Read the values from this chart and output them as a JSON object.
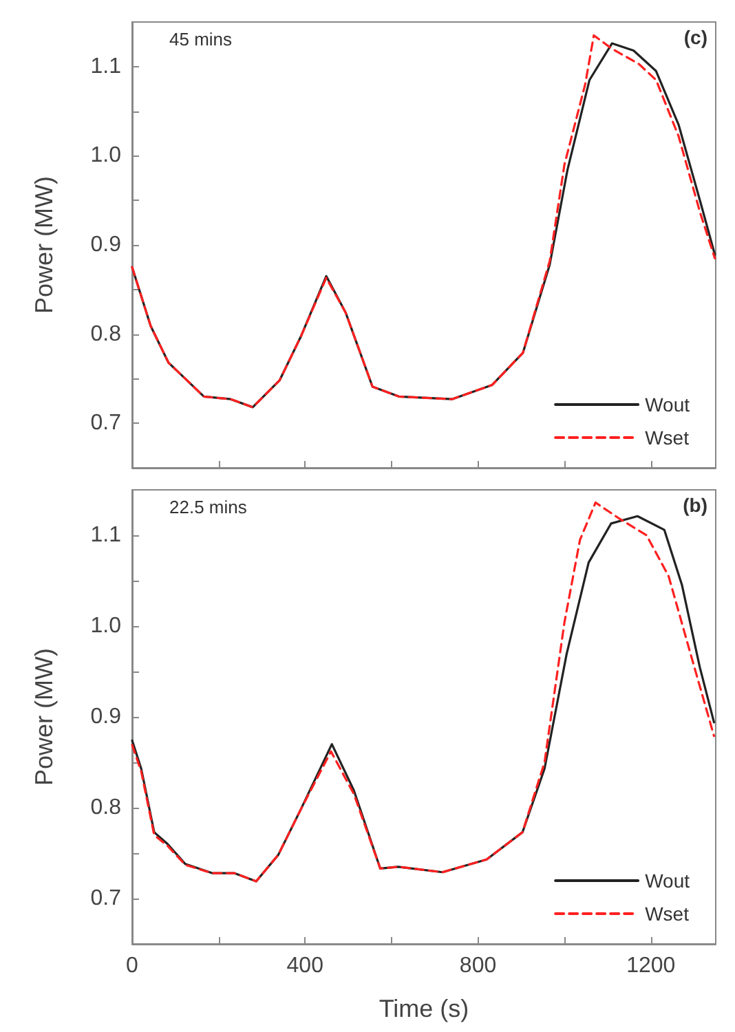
{
  "chart_data": [
    {
      "type": "line",
      "ylabel": "Power (MW)",
      "annotations": [
        "45 mins",
        "(c)"
      ],
      "xlim": [
        0,
        1350
      ],
      "ylim": [
        0.65,
        1.15
      ],
      "xticks": [
        0,
        {
          "value": 200,
          "label": null
        },
        400,
        {
          "value": 600,
          "label": null
        },
        800,
        {
          "value": 1000,
          "label": null
        },
        1200
      ],
      "yticks": [
        {
          "value": 0.65,
          "label": null
        },
        0.7,
        {
          "value": 0.75,
          "label": null
        },
        0.8,
        {
          "value": 0.85,
          "label": null
        },
        0.9,
        {
          "value": 0.95,
          "label": null
        },
        {
          "value": 1,
          "label": "1.0"
        },
        {
          "value": 1.05,
          "label": null
        },
        1.1
      ],
      "tick_labels": "y",
      "grid": false,
      "legend": "bottom right",
      "marker": "none",
      "series": [
        {
          "name": "Wout",
          "color": "#222222",
          "line_style": "solid",
          "x": [
            0,
            43,
            84,
            166,
            228,
            279,
            341,
            391,
            449,
            494,
            556,
            617,
            740,
            833,
            904,
            966,
            1007,
            1058,
            1110,
            1160,
            1212,
            1264,
            1314,
            1348
          ],
          "values": [
            0.875,
            0.809,
            0.768,
            0.73,
            0.727,
            0.718,
            0.748,
            0.798,
            0.865,
            0.824,
            0.741,
            0.73,
            0.727,
            0.743,
            0.779,
            0.878,
            0.984,
            1.085,
            1.126,
            1.118,
            1.095,
            1.035,
            0.949,
            0.889
          ]
        },
        {
          "name": "Wset",
          "color": "#ff2020",
          "line_style": "dashed",
          "x": [
            0,
            43,
            84,
            166,
            228,
            279,
            341,
            391,
            449,
            494,
            556,
            617,
            740,
            833,
            904,
            966,
            1000,
            1048,
            1068,
            1110,
            1172,
            1212,
            1264,
            1314,
            1348
          ],
          "values": [
            0.875,
            0.809,
            0.768,
            0.73,
            0.727,
            0.718,
            0.748,
            0.798,
            0.863,
            0.824,
            0.741,
            0.73,
            0.727,
            0.743,
            0.779,
            0.882,
            0.99,
            1.08,
            1.135,
            1.12,
            1.103,
            1.085,
            1.022,
            0.936,
            0.885
          ]
        }
      ]
    },
    {
      "type": "line",
      "xlabel": "Time (s)",
      "ylabel": "Power (MW)",
      "annotations": [
        "22.5 mins",
        "(b)"
      ],
      "xlim": [
        0,
        1350
      ],
      "ylim": [
        0.65,
        1.15
      ],
      "xticks": [
        0,
        {
          "value": 200,
          "label": null
        },
        400,
        {
          "value": 600,
          "label": null
        },
        800,
        {
          "value": 1000,
          "label": null
        },
        1200
      ],
      "yticks": [
        {
          "value": 0.65,
          "label": null
        },
        0.7,
        {
          "value": 0.75,
          "label": null
        },
        0.8,
        {
          "value": 0.85,
          "label": null
        },
        0.9,
        {
          "value": 0.95,
          "label": null
        },
        {
          "value": 1,
          "label": "1.0"
        },
        {
          "value": 1.05,
          "label": null
        },
        1.1
      ],
      "grid": false,
      "legend": "bottom right",
      "marker": "none",
      "series": [
        {
          "name": "Wout",
          "color": "#222222",
          "line_style": "solid",
          "x": [
            0,
            21,
            51,
            82,
            123,
            185,
            236,
            287,
            338,
            390,
            462,
            513,
            574,
            615,
            718,
            820,
            903,
            954,
            1005,
            1056,
            1108,
            1169,
            1231,
            1272,
            1313,
            1346
          ],
          "values": [
            0.874,
            0.843,
            0.773,
            0.76,
            0.738,
            0.728,
            0.728,
            0.719,
            0.748,
            0.798,
            0.87,
            0.819,
            0.733,
            0.735,
            0.729,
            0.743,
            0.773,
            0.843,
            0.969,
            1.07,
            1.113,
            1.121,
            1.106,
            1.045,
            0.955,
            0.894
          ]
        },
        {
          "name": "Wset",
          "color": "#ff2020",
          "line_style": "dashed",
          "x": [
            0,
            21,
            51,
            82,
            123,
            185,
            236,
            287,
            338,
            390,
            460,
            513,
            574,
            615,
            718,
            820,
            903,
            954,
            1000,
            1036,
            1072,
            1128,
            1190,
            1241,
            1292,
            1346
          ],
          "values": [
            0.869,
            0.84,
            0.77,
            0.758,
            0.737,
            0.728,
            0.728,
            0.719,
            0.748,
            0.798,
            0.862,
            0.815,
            0.733,
            0.735,
            0.729,
            0.743,
            0.773,
            0.85,
            1.004,
            1.095,
            1.136,
            1.118,
            1.1,
            1.055,
            0.969,
            0.879
          ]
        }
      ]
    }
  ]
}
